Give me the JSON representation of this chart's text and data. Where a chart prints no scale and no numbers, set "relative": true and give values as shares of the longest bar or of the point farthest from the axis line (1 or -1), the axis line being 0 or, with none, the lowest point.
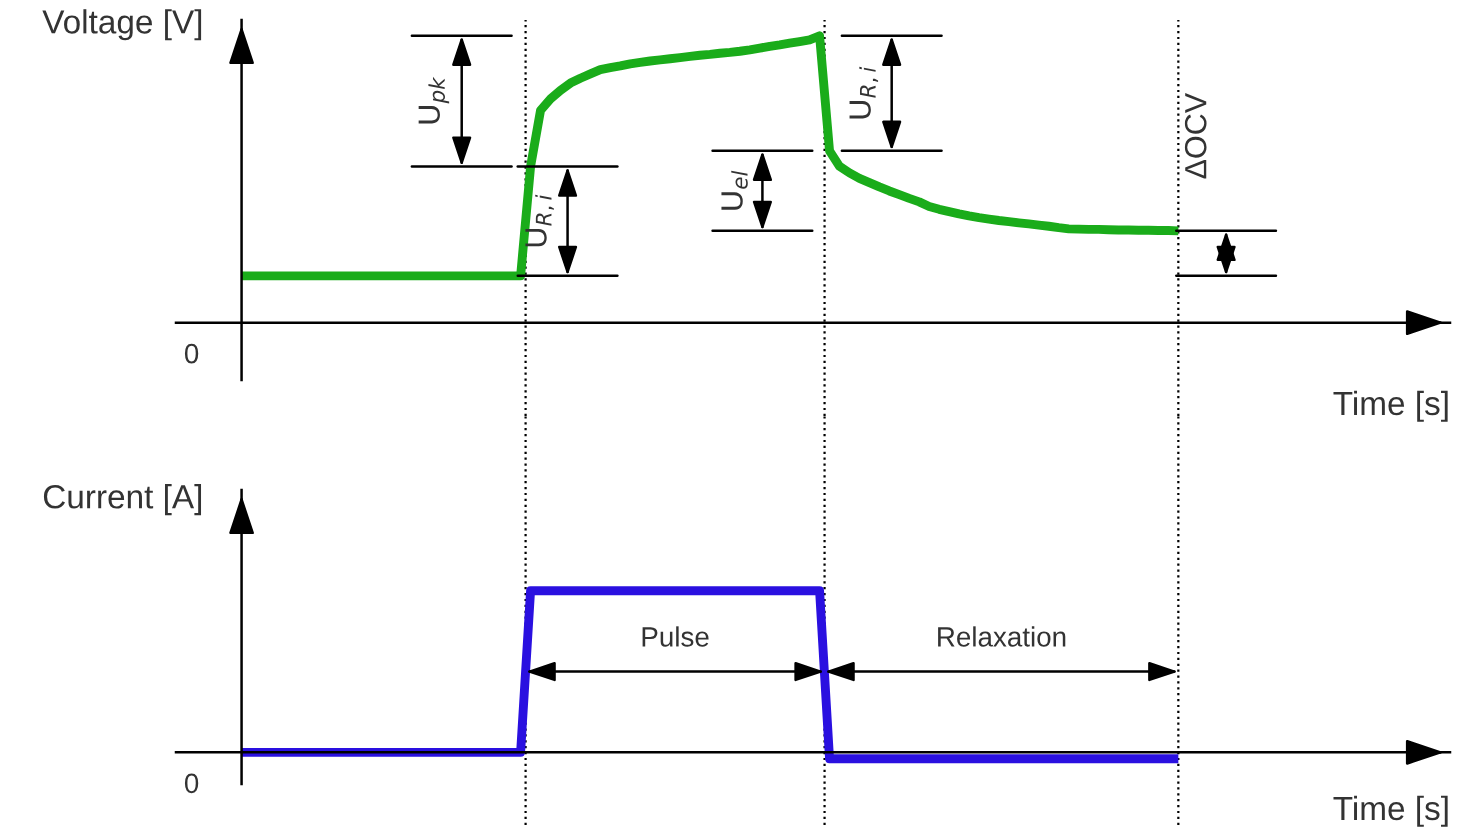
{
  "chart_data": [
    {
      "type": "line",
      "relative": true,
      "ylabel": "Voltage [V]",
      "xlabel": "Time [s]",
      "marker": "none",
      "line_style": "solid",
      "categories": [
        null,
        null,
        null,
        null,
        null,
        null,
        null,
        null,
        null,
        null,
        null,
        null,
        null,
        null,
        null,
        null,
        null,
        null,
        null,
        null,
        null,
        null,
        null,
        null,
        null,
        null,
        null,
        null,
        null,
        null,
        null,
        null,
        null,
        null,
        null,
        null,
        null,
        null,
        null,
        null,
        null,
        null,
        null,
        null,
        null,
        null,
        null,
        null,
        null,
        null,
        null,
        null,
        null,
        null,
        null,
        null,
        null,
        null,
        null,
        null,
        null,
        null,
        null,
        null,
        null,
        null,
        null,
        null,
        null,
        null,
        null,
        null,
        null,
        null,
        null,
        null,
        null,
        null,
        null,
        null,
        null,
        null,
        null,
        null,
        null,
        null,
        null,
        null,
        null,
        null,
        null,
        null,
        null,
        null,
        null
      ],
      "series": [
        {
          "color": "#1aac1a",
          "values": [
            0.163,
            0.163,
            0.163,
            0.163,
            0.163,
            0.163,
            0.163,
            0.163,
            0.163,
            0.163,
            0.163,
            0.163,
            0.163,
            0.163,
            0.163,
            0.163,
            0.163,
            0.163,
            0.163,
            0.163,
            0.163,
            0.163,
            0.163,
            0.163,
            0.163,
            0.163,
            0.163,
            0.163,
            0.163,
            0.544,
            0.74,
            0.78,
            0.81,
            0.835,
            0.852,
            0.867,
            0.882,
            0.889,
            0.895,
            0.902,
            0.907,
            0.912,
            0.916,
            0.92,
            0.924,
            0.928,
            0.932,
            0.935,
            0.939,
            0.942,
            0.946,
            0.951,
            0.957,
            0.963,
            0.968,
            0.974,
            0.98,
            0.986,
            1.0,
            0.599,
            0.545,
            0.522,
            0.503,
            0.488,
            0.473,
            0.459,
            0.446,
            0.433,
            0.421,
            0.405,
            0.395,
            0.387,
            0.379,
            0.372,
            0.366,
            0.361,
            0.356,
            0.352,
            0.348,
            0.344,
            0.34,
            0.336,
            0.331,
            0.327,
            0.326,
            0.325,
            0.325,
            0.324,
            0.323,
            0.323,
            0.322,
            0.322,
            0.321,
            0.321,
            0.32
          ]
        }
      ],
      "annotations": [
        "0",
        "U$_{pk}$",
        "U$_{R,i}$",
        "U$_{R,i}$",
        "U$_{el}$",
        "ΔOCV"
      ]
    },
    {
      "type": "line",
      "relative": true,
      "ylabel": "Current [A]",
      "xlabel": "Time [s]",
      "marker": "none",
      "line_style": "solid",
      "categories": [
        null,
        null,
        null,
        null,
        null,
        null,
        null,
        null,
        null,
        null,
        null,
        null,
        null,
        null,
        null,
        null,
        null,
        null,
        null,
        null,
        null,
        null,
        null,
        null,
        null,
        null,
        null,
        null,
        null,
        null,
        null,
        null,
        null,
        null,
        null,
        null,
        null,
        null,
        null,
        null,
        null,
        null,
        null,
        null,
        null,
        null,
        null,
        null,
        null,
        null,
        null,
        null,
        null,
        null,
        null,
        null,
        null,
        null,
        null,
        null,
        null,
        null,
        null,
        null,
        null,
        null,
        null,
        null,
        null,
        null,
        null,
        null,
        null,
        null,
        null,
        null,
        null,
        null,
        null,
        null,
        null,
        null,
        null,
        null,
        null,
        null,
        null,
        null,
        null,
        null,
        null,
        null,
        null,
        null,
        null
      ],
      "series": [
        {
          "color": "#2a10e0",
          "values": [
            0,
            0,
            0,
            0,
            0,
            0,
            0,
            0,
            0,
            0,
            0,
            0,
            0,
            0,
            0,
            0,
            0,
            0,
            0,
            0,
            0,
            0,
            0,
            0,
            0,
            0,
            0,
            0,
            0,
            1,
            1,
            1,
            1,
            1,
            1,
            1,
            1,
            1,
            1,
            1,
            1,
            1,
            1,
            1,
            1,
            1,
            1,
            1,
            1,
            1,
            1,
            1,
            1,
            1,
            1,
            1,
            1,
            1,
            1,
            -0.04,
            -0.04,
            -0.04,
            -0.04,
            -0.04,
            -0.04,
            -0.04,
            -0.04,
            -0.04,
            -0.04,
            -0.04,
            -0.04,
            -0.04,
            -0.04,
            -0.04,
            -0.04,
            -0.04,
            -0.04,
            -0.04,
            -0.04,
            -0.04,
            -0.04,
            -0.04,
            -0.04,
            -0.04,
            -0.04,
            -0.04,
            -0.04,
            -0.04,
            -0.04,
            -0.04,
            -0.04,
            -0.04,
            -0.04,
            -0.04,
            -0.04
          ]
        }
      ],
      "annotations": [
        "0",
        "Pulse",
        "Relaxation"
      ]
    }
  ]
}
